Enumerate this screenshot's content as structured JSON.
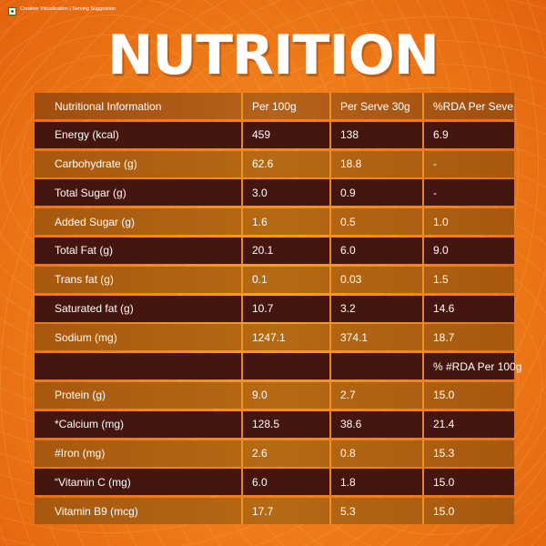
{
  "header": {
    "note": "Creative Visualisation | Serving Suggestion",
    "title": "NUTRITION"
  },
  "table": {
    "columns": [
      "Nutritional Information",
      "Per 100g",
      "Per Serve 30g",
      "%RDA Per Seve"
    ],
    "rows": [
      [
        "Energy (kcal)",
        "459",
        "138",
        "6.9"
      ],
      [
        "Carbohydrate (g)",
        "62.6",
        "18.8",
        "-"
      ],
      [
        "Total Sugar (g)",
        "3.0",
        "0.9",
        "-"
      ],
      [
        "Added Sugar (g)",
        "1.6",
        "0.5",
        "1.0"
      ],
      [
        "Total Fat (g)",
        "20.1",
        "6.0",
        "9.0"
      ],
      [
        "Trans fat (g)",
        "0.1",
        "0.03",
        "1.5"
      ],
      [
        "Saturated fat (g)",
        "10.7",
        "3.2",
        "14.6"
      ],
      [
        "Sodium (mg)",
        "1247.1",
        "374.1",
        "18.7"
      ],
      [
        "",
        "",
        "",
        "% #RDA Per 100g"
      ],
      [
        "Protein (g)",
        "9.0",
        "2.7",
        "15.0"
      ],
      [
        "*Calcium (mg)",
        "128.5",
        "38.6",
        "21.4"
      ],
      [
        "#Iron (mg)",
        "2.6",
        "0.8",
        "15.3"
      ],
      [
        "“Vitamin C (mg)",
        "6.0",
        "1.8",
        "15.0"
      ],
      [
        "Vitamin B9 (mcg)",
        "17.7",
        "5.3",
        "15.0"
      ]
    ]
  }
}
